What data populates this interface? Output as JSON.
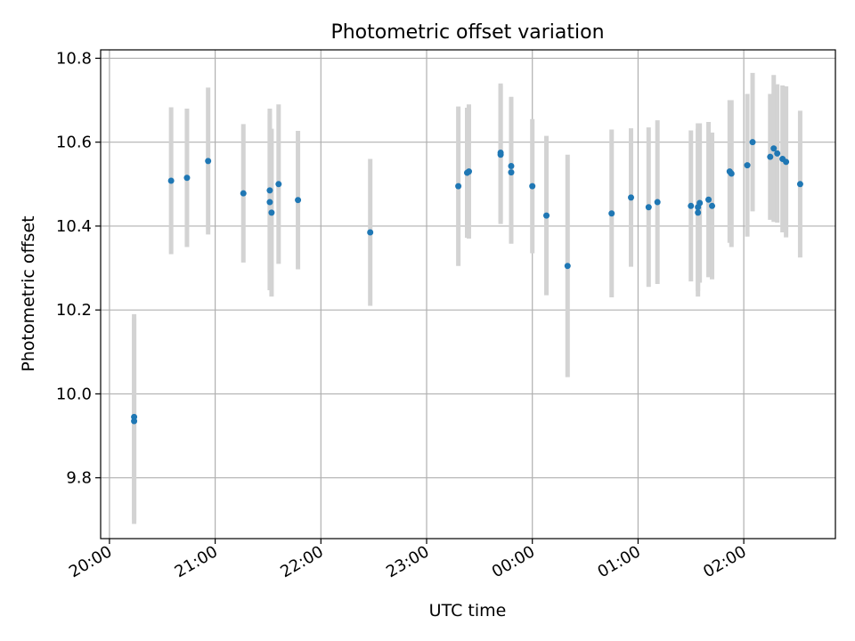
{
  "chart_data": {
    "type": "scatter",
    "title": "Photometric offset variation",
    "xlabel": "UTC time",
    "ylabel": "Photometric offset",
    "x_tick_labels": [
      "20:00",
      "21:00",
      "22:00",
      "23:00",
      "00:00",
      "01:00",
      "02:00"
    ],
    "y_ticks": [
      9.8,
      10.0,
      10.2,
      10.4,
      10.6,
      10.8
    ],
    "xlim": [
      "19:55",
      "02:52"
    ],
    "ylim": [
      9.655,
      10.82
    ],
    "grid": true,
    "colors": {
      "point": "#1f77b4",
      "errorbar": "#d3d3d3",
      "grid": "#b0b0b0"
    },
    "series": [
      {
        "x": [
          "20:14",
          "20:14",
          "20:35",
          "20:44",
          "20:56",
          "21:16",
          "21:31",
          "21:31",
          "21:32",
          "21:36",
          "21:47",
          "22:28",
          "23:18",
          "23:23",
          "23:24",
          "23:42",
          "23:42",
          "23:48",
          "23:48",
          "24:00",
          "24:08",
          "24:20",
          "24:45",
          "24:56",
          "25:06",
          "25:11",
          "25:30",
          "25:34",
          "25:34",
          "25:35",
          "25:40",
          "25:42",
          "25:52",
          "25:53",
          "26:02",
          "26:05",
          "26:15",
          "26:17",
          "26:19",
          "26:22",
          "26:24",
          "26:32"
        ],
        "y": [
          9.935,
          9.945,
          10.508,
          10.515,
          10.555,
          10.478,
          10.485,
          10.457,
          10.432,
          10.5,
          10.462,
          10.385,
          10.495,
          10.527,
          10.53,
          10.57,
          10.575,
          10.543,
          10.528,
          10.495,
          10.425,
          10.305,
          10.43,
          10.468,
          10.445,
          10.457,
          10.448,
          10.432,
          10.445,
          10.455,
          10.463,
          10.448,
          10.53,
          10.525,
          10.545,
          10.6,
          10.565,
          10.585,
          10.573,
          10.56,
          10.553,
          10.5
        ],
        "err": [
          0.245,
          0.245,
          0.175,
          0.165,
          0.175,
          0.165,
          0.195,
          0.21,
          0.2,
          0.19,
          0.165,
          0.175,
          0.19,
          0.155,
          0.16,
          0.165,
          0.165,
          0.165,
          0.17,
          0.16,
          0.19,
          0.265,
          0.2,
          0.165,
          0.19,
          0.195,
          0.18,
          0.2,
          0.2,
          0.19,
          0.185,
          0.175,
          0.17,
          0.175,
          0.17,
          0.165,
          0.15,
          0.175,
          0.165,
          0.175,
          0.18,
          0.175
        ]
      }
    ]
  }
}
